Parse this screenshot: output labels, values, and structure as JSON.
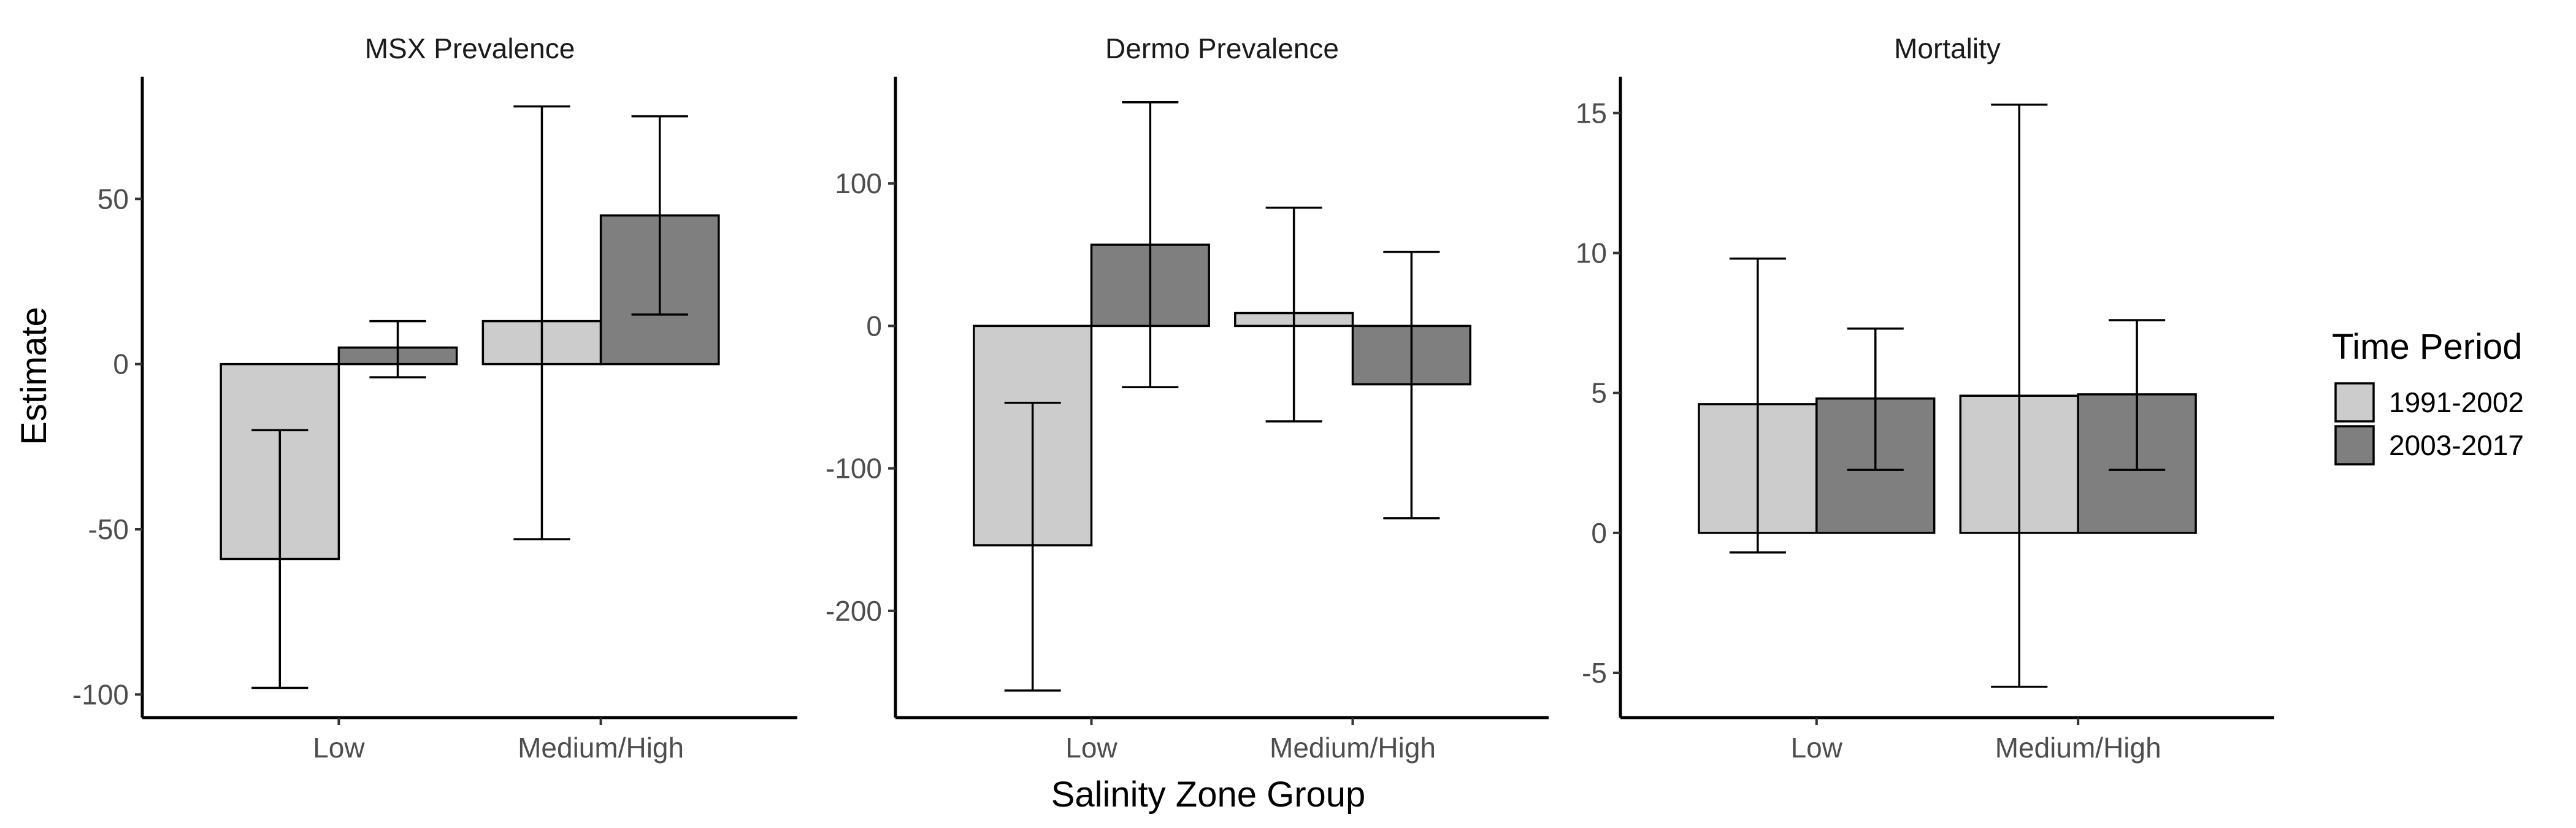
{
  "chart_data": {
    "type": "bar",
    "ylabel": "Estimate",
    "xlabel": "Salinity Zone Group",
    "categories": [
      "Low",
      "Medium/High"
    ],
    "legend": {
      "title": "Time Period",
      "position": "right",
      "entries": [
        {
          "name": "1991-2002",
          "color": "#cccccc"
        },
        {
          "name": "2003-2017",
          "color": "#7f7f7f"
        }
      ]
    },
    "grid": false,
    "panels": [
      {
        "title": "MSX Prevalence",
        "ylim": [
          -107,
          87
        ],
        "yticks": [
          -100,
          -50,
          0,
          50
        ],
        "series": [
          {
            "name": "1991-2002",
            "values": [
              -59,
              13
            ],
            "err_low": [
              -98,
              -53
            ],
            "err_high": [
              -20,
              78
            ]
          },
          {
            "name": "2003-2017",
            "values": [
              5,
              45
            ],
            "err_low": [
              -4,
              15
            ],
            "err_high": [
              13,
              75
            ]
          }
        ]
      },
      {
        "title": "Dermo Prevalence",
        "ylim": [
          -275,
          175
        ],
        "yticks": [
          -200,
          -100,
          0,
          100
        ],
        "series": [
          {
            "name": "1991-2002",
            "values": [
              -154,
              9
            ],
            "err_low": [
              -256,
              -67
            ],
            "err_high": [
              -54,
              83
            ]
          },
          {
            "name": "2003-2017",
            "values": [
              57,
              -41
            ],
            "err_low": [
              -43,
              -135
            ],
            "err_high": [
              157,
              52
            ]
          }
        ]
      },
      {
        "title": "Mortality",
        "ylim": [
          -6.6,
          16.3
        ],
        "yticks": [
          -5,
          0,
          5,
          10,
          15
        ],
        "series": [
          {
            "name": "1991-2002",
            "values": [
              4.6,
              4.9
            ],
            "err_low": [
              -0.7,
              -5.5
            ],
            "err_high": [
              9.8,
              15.3
            ]
          },
          {
            "name": "2003-2017",
            "values": [
              4.8,
              4.95
            ],
            "err_low": [
              2.25,
              2.25
            ],
            "err_high": [
              7.3,
              7.6
            ]
          }
        ]
      }
    ]
  }
}
